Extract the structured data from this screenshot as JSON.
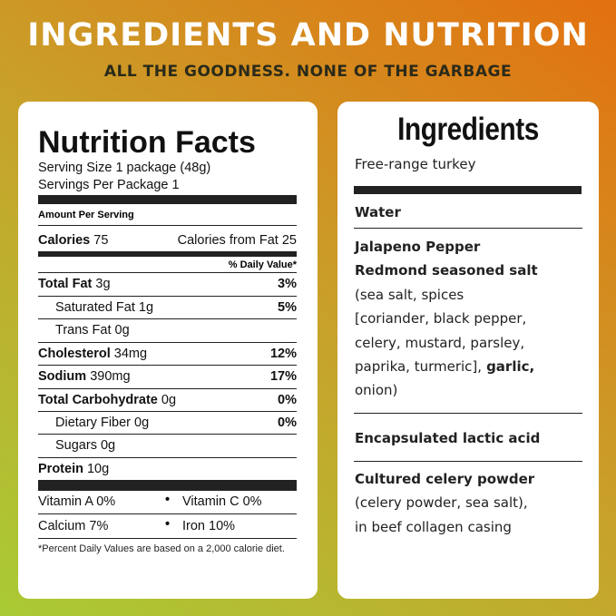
{
  "header": {
    "title": "INGREDIENTS AND NUTRITION",
    "subtitle": "ALL THE GOODNESS. NONE OF THE GARBAGE"
  },
  "nutrition": {
    "title": "Nutrition Facts",
    "serving_size": {
      "label": "Serving Size",
      "value": "1 package (48g)"
    },
    "servings": {
      "label": "Servings Per Package",
      "value": "1"
    },
    "amount_per_serving": "Amount Per Serving",
    "calories": {
      "label": "Calories",
      "value": "75",
      "fat_label": "Calories from Fat",
      "fat_value": "25"
    },
    "daily_value_header": "% Daily Value*",
    "rows": [
      {
        "label": "Total Fat",
        "amount": "3g",
        "dv": "3%"
      },
      {
        "label": "Saturated Fat",
        "amount": "1g",
        "dv": "5%"
      },
      {
        "label": "Trans Fat",
        "amount": "0g"
      },
      {
        "label": "Cholesterol",
        "amount": "34mg",
        "dv": "12%"
      },
      {
        "label": "Sodium",
        "amount": "390mg",
        "dv": "17%"
      },
      {
        "label": "Total Carbohydrate",
        "amount": "0g",
        "dv": "0%"
      },
      {
        "label": "Dietary Fiber",
        "amount": "0g",
        "dv": "0%"
      },
      {
        "label": "Sugars",
        "amount": "0g"
      },
      {
        "label": "Protein",
        "amount": "10g"
      }
    ],
    "vitamins": [
      [
        "Vitamin A 0%",
        "Vitamin C 0%"
      ],
      [
        "Calcium 7%",
        "Iron 10%"
      ]
    ],
    "footnote": "*Percent Daily Values are based on a 2,000 calorie diet."
  },
  "ingredients": {
    "title": "Ingredients",
    "items": [
      [
        "Free-range turkey"
      ],
      [
        "Water"
      ],
      [
        "Jalapeno Pepper",
        "Redmond seasoned salt",
        "(sea salt, spices",
        "[coriander, black pepper,",
        "celery, mustard, parsley,",
        "paprika, turmeric],",
        "garlic,",
        "onion)"
      ],
      [
        "Encapsulated lactic acid"
      ],
      [
        "Cultured celery powder",
        "(celery powder, sea salt),",
        "in beef collagen casing"
      ]
    ]
  }
}
